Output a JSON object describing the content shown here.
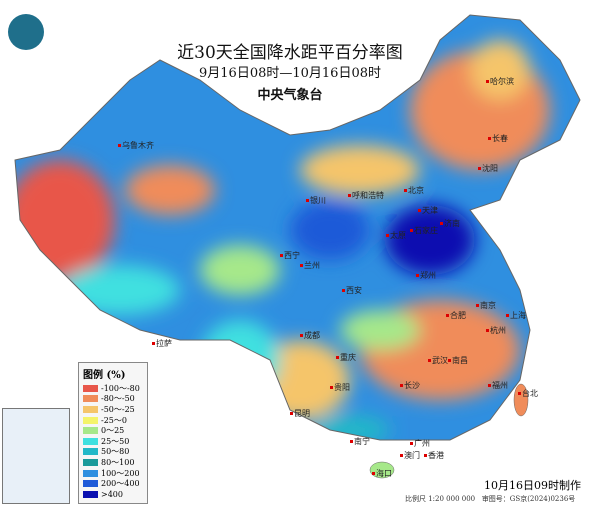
{
  "title": "近30天全国降水距平百分率图",
  "period": "9月16日08时—10月16日08时",
  "issuer": "中央气象台",
  "legend": {
    "title": "图例 (%)",
    "items": [
      {
        "label": "-100～-80",
        "color": "#e8574a"
      },
      {
        "label": "-80～-50",
        "color": "#f08c5a"
      },
      {
        "label": "-50～-25",
        "color": "#f5c56a"
      },
      {
        "label": "-25～0",
        "color": "#f4f46a"
      },
      {
        "label": "0～25",
        "color": "#a6e88a"
      },
      {
        "label": "25～50",
        "color": "#3fe0e0"
      },
      {
        "label": "50～80",
        "color": "#22b8c8"
      },
      {
        "label": "80～100",
        "color": "#1a9a9a"
      },
      {
        "label": "100～200",
        "color": "#2f8fe0"
      },
      {
        "label": "200～400",
        "color": "#1e5ad8"
      },
      {
        "label": ">400",
        "color": "#0a10b0"
      }
    ]
  },
  "cities": [
    "乌鲁木齐",
    "哈尔滨",
    "长春",
    "沈阳",
    "呼和浩特",
    "北京",
    "天津",
    "太原",
    "石家庄",
    "济南",
    "银川",
    "西宁",
    "兰州",
    "郑州",
    "西安",
    "合肥",
    "南京",
    "上海",
    "杭州",
    "武汉",
    "成都",
    "重庆",
    "拉萨",
    "长沙",
    "南昌",
    "福州",
    "台北",
    "贵阳",
    "昆明",
    "南宁",
    "广州",
    "澳门",
    "香港",
    "海口"
  ],
  "footer": {
    "made": "10月16日09时制作",
    "scale": "比例尺 1:20 000 000",
    "approval": "审图号：GS京(2024)0236号"
  }
}
